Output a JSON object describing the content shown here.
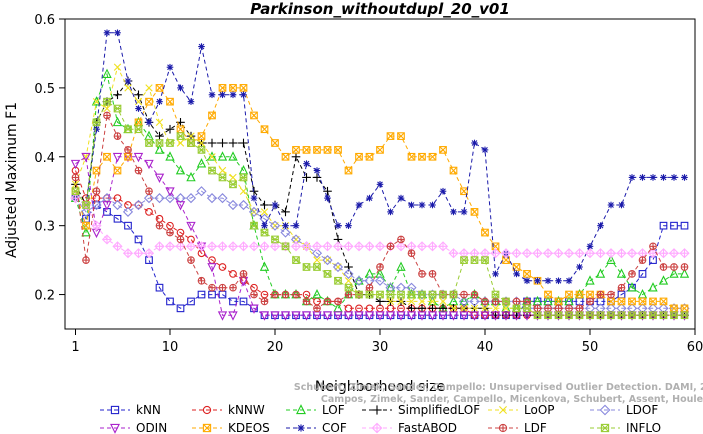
{
  "chart_data": {
    "type": "line",
    "title": "Parkinson_withoutdupl_20_v01",
    "xlabel": "Neighborhood size",
    "ylabel": "Adjusted Maximum F1",
    "xlim": [
      0,
      60
    ],
    "ylim": [
      0.15,
      0.6
    ],
    "xticks": [
      1,
      10,
      20,
      30,
      40,
      50,
      60
    ],
    "yticks": [
      0.2,
      0.3,
      0.4,
      0.5,
      0.6
    ],
    "x": [
      1,
      2,
      3,
      4,
      5,
      6,
      7,
      8,
      9,
      10,
      11,
      12,
      13,
      14,
      15,
      16,
      17,
      18,
      19,
      20,
      21,
      22,
      23,
      24,
      25,
      26,
      27,
      28,
      29,
      30,
      31,
      32,
      33,
      34,
      35,
      36,
      37,
      38,
      39,
      40,
      41,
      42,
      43,
      44,
      45,
      46,
      47,
      48,
      49,
      50,
      51,
      52,
      53,
      54,
      55,
      56,
      57,
      58,
      59
    ],
    "series": [
      {
        "name": "kNN",
        "color": "#2222cc",
        "marker": "square",
        "values": [
          0.34,
          0.31,
          0.33,
          0.32,
          0.31,
          0.3,
          0.28,
          0.25,
          0.21,
          0.19,
          0.18,
          0.19,
          0.2,
          0.2,
          0.2,
          0.19,
          0.19,
          0.18,
          0.17,
          0.17,
          0.17,
          0.17,
          0.17,
          0.17,
          0.17,
          0.17,
          0.17,
          0.17,
          0.17,
          0.17,
          0.17,
          0.17,
          0.17,
          0.17,
          0.17,
          0.17,
          0.17,
          0.17,
          0.17,
          0.17,
          0.17,
          0.17,
          0.17,
          0.19,
          0.19,
          0.19,
          0.19,
          0.19,
          0.19,
          0.19,
          0.19,
          0.19,
          0.2,
          0.21,
          0.23,
          0.25,
          0.3,
          0.3,
          0.3
        ]
      },
      {
        "name": "kNNW",
        "color": "#dd2222",
        "marker": "circle",
        "values": [
          0.38,
          0.34,
          0.34,
          0.34,
          0.34,
          0.33,
          0.33,
          0.32,
          0.31,
          0.3,
          0.29,
          0.28,
          0.26,
          0.25,
          0.24,
          0.23,
          0.22,
          0.21,
          0.2,
          0.2,
          0.2,
          0.2,
          0.2,
          0.19,
          0.19,
          0.19,
          0.18,
          0.18,
          0.18,
          0.18,
          0.18,
          0.18,
          0.18,
          0.18,
          0.18,
          0.18,
          0.18,
          0.18,
          0.17,
          0.17,
          0.17,
          0.17,
          0.17,
          0.17,
          0.17,
          0.17,
          0.17,
          0.17,
          0.17,
          0.17,
          0.17,
          0.17,
          0.17,
          0.17,
          0.17,
          0.17,
          0.17,
          0.17,
          0.17
        ]
      },
      {
        "name": "LOF",
        "color": "#22cc22",
        "marker": "triangle-up",
        "values": [
          0.34,
          0.29,
          0.48,
          0.52,
          0.45,
          0.44,
          0.45,
          0.43,
          0.41,
          0.4,
          0.38,
          0.37,
          0.39,
          0.4,
          0.4,
          0.4,
          0.38,
          0.3,
          0.24,
          0.2,
          0.2,
          0.2,
          0.19,
          0.2,
          0.19,
          0.18,
          0.2,
          0.22,
          0.23,
          0.23,
          0.21,
          0.24,
          0.2,
          0.2,
          0.19,
          0.18,
          0.19,
          0.19,
          0.2,
          0.19,
          0.19,
          0.18,
          0.18,
          0.19,
          0.19,
          0.19,
          0.19,
          0.19,
          0.2,
          0.22,
          0.23,
          0.25,
          0.23,
          0.21,
          0.2,
          0.21,
          0.22,
          0.23,
          0.23
        ]
      },
      {
        "name": "SimplifiedLOF",
        "color": "#000000",
        "marker": "plus",
        "values": [
          0.36,
          0.33,
          0.45,
          0.48,
          0.49,
          0.51,
          0.49,
          0.45,
          0.43,
          0.44,
          0.45,
          0.43,
          0.42,
          0.42,
          0.42,
          0.42,
          0.42,
          0.35,
          0.33,
          0.33,
          0.32,
          0.4,
          0.37,
          0.37,
          0.35,
          0.28,
          0.24,
          0.2,
          0.2,
          0.19,
          0.19,
          0.19,
          0.18,
          0.18,
          0.18,
          0.18,
          0.18,
          0.18,
          0.18,
          0.18,
          0.17,
          0.17,
          0.17,
          0.17,
          0.17,
          0.17,
          0.17,
          0.17,
          0.17,
          0.17,
          0.17,
          0.17,
          0.17,
          0.17,
          0.17,
          0.17,
          0.17,
          0.17,
          0.17
        ]
      },
      {
        "name": "LoOP",
        "color": "#f0e020",
        "marker": "x",
        "values": [
          0.36,
          0.4,
          0.48,
          0.47,
          0.53,
          0.5,
          0.48,
          0.5,
          0.45,
          0.42,
          0.42,
          0.43,
          0.42,
          0.4,
          0.38,
          0.37,
          0.35,
          0.32,
          0.32,
          0.3,
          0.3,
          0.28,
          0.27,
          0.25,
          0.25,
          0.24,
          0.22,
          0.2,
          0.2,
          0.2,
          0.19,
          0.19,
          0.19,
          0.19,
          0.19,
          0.19,
          0.18,
          0.18,
          0.18,
          0.18,
          0.18,
          0.18,
          0.18,
          0.18,
          0.17,
          0.17,
          0.17,
          0.17,
          0.17,
          0.17,
          0.17,
          0.17,
          0.17,
          0.17,
          0.17,
          0.17,
          0.17,
          0.17,
          0.17
        ]
      },
      {
        "name": "LDOF",
        "color": "#8888dd",
        "marker": "diamond",
        "values": [
          0.34,
          0.32,
          0.33,
          0.34,
          0.33,
          0.32,
          0.33,
          0.34,
          0.34,
          0.34,
          0.34,
          0.34,
          0.35,
          0.34,
          0.34,
          0.33,
          0.33,
          0.32,
          0.31,
          0.3,
          0.29,
          0.28,
          0.27,
          0.26,
          0.25,
          0.24,
          0.23,
          0.22,
          0.22,
          0.22,
          0.21,
          0.21,
          0.21,
          0.2,
          0.2,
          0.2,
          0.2,
          0.19,
          0.19,
          0.19,
          0.19,
          0.19,
          0.19,
          0.18,
          0.18,
          0.18,
          0.18,
          0.18,
          0.18,
          0.18,
          0.18,
          0.18,
          0.18,
          0.18,
          0.18,
          0.18,
          0.18,
          0.18,
          0.18
        ]
      },
      {
        "name": "ODIN",
        "color": "#aa22cc",
        "marker": "triangle-down",
        "values": [
          0.39,
          0.4,
          0.29,
          0.33,
          0.4,
          0.4,
          0.4,
          0.39,
          0.37,
          0.35,
          0.33,
          0.3,
          0.27,
          0.24,
          0.17,
          0.17,
          0.22,
          0.18,
          0.17,
          0.17,
          0.17,
          0.17,
          0.17,
          0.17,
          0.17,
          0.17,
          0.17,
          0.17,
          0.17,
          0.17,
          0.17,
          0.17,
          0.17,
          0.17,
          0.17,
          0.17,
          0.17,
          0.17,
          0.17,
          0.17,
          0.17,
          0.17,
          0.17,
          0.17,
          0.17,
          0.17,
          0.17,
          0.17,
          0.17,
          0.17,
          0.17,
          0.17,
          0.17,
          0.17,
          0.17,
          0.17,
          0.17,
          0.17,
          0.17
        ]
      },
      {
        "name": "KDEOS",
        "color": "#ffaa00",
        "marker": "square-x",
        "values": [
          0.35,
          0.3,
          0.38,
          0.4,
          0.38,
          0.4,
          0.45,
          0.48,
          0.5,
          0.48,
          0.44,
          0.42,
          0.43,
          0.46,
          0.5,
          0.5,
          0.5,
          0.46,
          0.44,
          0.42,
          0.4,
          0.41,
          0.41,
          0.41,
          0.41,
          0.41,
          0.38,
          0.4,
          0.4,
          0.41,
          0.43,
          0.43,
          0.4,
          0.4,
          0.4,
          0.41,
          0.38,
          0.35,
          0.32,
          0.29,
          0.27,
          0.25,
          0.24,
          0.23,
          0.22,
          0.2,
          0.19,
          0.2,
          0.2,
          0.2,
          0.2,
          0.19,
          0.19,
          0.19,
          0.19,
          0.19,
          0.19,
          0.18,
          0.18
        ]
      },
      {
        "name": "COF",
        "color": "#1a1aaa",
        "marker": "star",
        "values": [
          0.34,
          0.33,
          0.44,
          0.58,
          0.58,
          0.51,
          0.47,
          0.45,
          0.48,
          0.53,
          0.5,
          0.48,
          0.56,
          0.49,
          0.49,
          0.49,
          0.49,
          0.34,
          0.3,
          0.33,
          0.3,
          0.3,
          0.39,
          0.38,
          0.34,
          0.3,
          0.3,
          0.33,
          0.34,
          0.36,
          0.32,
          0.34,
          0.33,
          0.33,
          0.33,
          0.35,
          0.32,
          0.32,
          0.42,
          0.41,
          0.23,
          0.26,
          0.23,
          0.22,
          0.22,
          0.22,
          0.22,
          0.22,
          0.24,
          0.27,
          0.3,
          0.33,
          0.33,
          0.37,
          0.37,
          0.37,
          0.37,
          0.37,
          0.37
        ]
      },
      {
        "name": "FastABOD",
        "color": "#ffaaff",
        "marker": "diamond-plus",
        "values": [
          0.34,
          0.33,
          0.3,
          0.28,
          0.27,
          0.26,
          0.26,
          0.26,
          0.27,
          0.27,
          0.27,
          0.27,
          0.27,
          0.27,
          0.27,
          0.27,
          0.27,
          0.27,
          0.27,
          0.27,
          0.27,
          0.27,
          0.27,
          0.27,
          0.27,
          0.27,
          0.27,
          0.27,
          0.27,
          0.27,
          0.27,
          0.27,
          0.27,
          0.27,
          0.27,
          0.27,
          0.26,
          0.26,
          0.26,
          0.26,
          0.26,
          0.26,
          0.26,
          0.26,
          0.26,
          0.26,
          0.26,
          0.26,
          0.26,
          0.26,
          0.26,
          0.26,
          0.26,
          0.26,
          0.26,
          0.26,
          0.26,
          0.26,
          0.26
        ]
      },
      {
        "name": "LDF",
        "color": "#cc4444",
        "marker": "circle-plus",
        "values": [
          0.37,
          0.25,
          0.35,
          0.46,
          0.43,
          0.41,
          0.38,
          0.35,
          0.3,
          0.29,
          0.28,
          0.25,
          0.22,
          0.21,
          0.21,
          0.21,
          0.23,
          0.2,
          0.19,
          0.2,
          0.2,
          0.2,
          0.19,
          0.18,
          0.19,
          0.19,
          0.2,
          0.2,
          0.21,
          0.24,
          0.27,
          0.28,
          0.26,
          0.23,
          0.23,
          0.2,
          0.2,
          0.2,
          0.2,
          0.19,
          0.19,
          0.19,
          0.19,
          0.19,
          0.18,
          0.18,
          0.18,
          0.18,
          0.18,
          0.19,
          0.2,
          0.2,
          0.21,
          0.23,
          0.25,
          0.27,
          0.24,
          0.24,
          0.24
        ]
      },
      {
        "name": "INFLO",
        "color": "#99cc33",
        "marker": "square-star",
        "values": [
          0.35,
          0.33,
          0.45,
          0.48,
          0.47,
          0.44,
          0.44,
          0.42,
          0.42,
          0.42,
          0.43,
          0.42,
          0.41,
          0.38,
          0.37,
          0.36,
          0.37,
          0.3,
          0.29,
          0.28,
          0.27,
          0.25,
          0.24,
          0.24,
          0.23,
          0.22,
          0.21,
          0.2,
          0.2,
          0.2,
          0.2,
          0.2,
          0.2,
          0.2,
          0.2,
          0.2,
          0.2,
          0.25,
          0.25,
          0.25,
          0.2,
          0.19,
          0.18,
          0.18,
          0.17,
          0.17,
          0.17,
          0.17,
          0.17,
          0.17,
          0.17,
          0.17,
          0.17,
          0.17,
          0.17,
          0.17,
          0.17,
          0.17,
          0.17
        ]
      }
    ],
    "legend": {
      "placement": "bottom",
      "columns": 4
    },
    "watermark": [
      "Schubert, Zimek, Sander, Campello: Unsupervised Outlier Detection. DAMI, 2015.",
      "Campos, Zimek, Sander, Campello, Micenkova, Schubert, Assent, Houle"
    ]
  }
}
